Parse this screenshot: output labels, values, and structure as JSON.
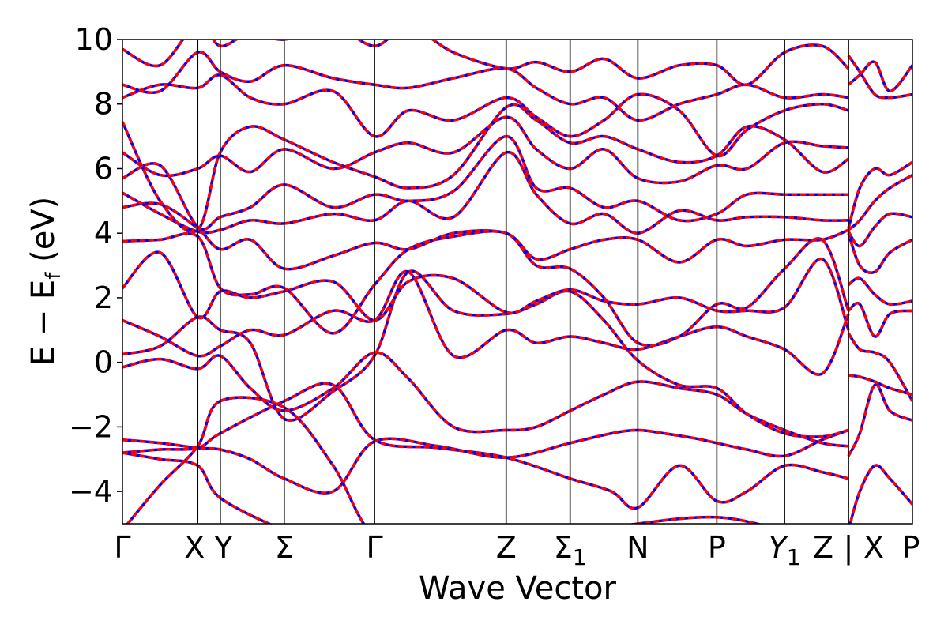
{
  "chart_data": {
    "type": "line",
    "title": "",
    "xlabel": "Wave Vector",
    "ylabel": "E − E",
    "ylabel_sub": "f",
    "ylabel_unit": "(eV)",
    "ylim": [
      -5,
      10
    ],
    "yticks": [
      "10",
      "8",
      "6",
      "4",
      "2",
      "0",
      "−2",
      "−4"
    ],
    "ytick_values": [
      10,
      8,
      6,
      4,
      2,
      0,
      -2,
      -4
    ],
    "xlim": [
      0,
      10.5
    ],
    "kpoints": [
      {
        "label": "Γ",
        "x": 0
      },
      {
        "label": "X",
        "x": 1.0
      },
      {
        "label": "Y",
        "x": 1.3
      },
      {
        "label": "Σ",
        "x": 2.15
      },
      {
        "label": "Γ",
        "x": 3.35
      },
      {
        "label": "Z",
        "x": 5.1
      },
      {
        "label": "Σ",
        "sub": "1",
        "x": 5.95
      },
      {
        "label": "N",
        "x": 6.85
      },
      {
        "label": "P",
        "x": 7.9
      },
      {
        "label": "Y",
        "sub": "1",
        "italic": true,
        "x": 8.8
      },
      {
        "label": "Z",
        "x": 9.65
      },
      {
        "label": "X",
        "x": 9.65,
        "break": true
      },
      {
        "label": "P",
        "x": 10.5
      }
    ],
    "series_colors": {
      "primary": "#ff0000",
      "secondary": "#0000ff"
    },
    "bands": [
      {
        "x": [
          0,
          0.5,
          1.0,
          1.3,
          2.15,
          2.8,
          3.35,
          4.2,
          5.1,
          5.95,
          6.85,
          7.9,
          8.8,
          9.65
        ],
        "y": [
          -5.2,
          -3.8,
          -2.6,
          -1.2,
          -1.4,
          -3.2,
          -5.4,
          -6,
          -6,
          -6,
          -6,
          -6,
          -6,
          -6
        ]
      },
      {
        "x": [
          0,
          0.5,
          1.0,
          1.3,
          2.15,
          2.8,
          3.35,
          4.2,
          5.1,
          5.95,
          6.85,
          7.9,
          8.8,
          9.65
        ],
        "y": [
          -2.8,
          -3.0,
          -3.2,
          -4.2,
          -5.2,
          -5.6,
          -5.8,
          -6,
          -6,
          -5.4,
          -5.0,
          -4.8,
          -5.2,
          -5.6
        ]
      },
      {
        "x": [
          0,
          0.5,
          1.0,
          1.3,
          1.7,
          2.15,
          2.8,
          3.35,
          4.2,
          5.1,
          5.95,
          6.5,
          6.85,
          7.2,
          7.6,
          7.9,
          8.3,
          8.8,
          9.3,
          9.65
        ],
        "y": [
          -2.4,
          -2.5,
          -2.65,
          -2.7,
          -3.0,
          -3.6,
          -4.0,
          -2.45,
          -2.6,
          -2.95,
          -2.5,
          -2.2,
          -2.1,
          -2.2,
          -2.35,
          -2.5,
          -2.7,
          -2.9,
          -2.4,
          -2.1
        ]
      },
      {
        "x": [
          0,
          0.5,
          1.0,
          1.3,
          2.15,
          2.8,
          3.35,
          4.2,
          5.1,
          5.95,
          6.5,
          6.85,
          7.4,
          7.9,
          8.3,
          8.8,
          9.3,
          9.65
        ],
        "y": [
          -2.8,
          -2.7,
          -2.65,
          -2.2,
          -1.2,
          -0.7,
          -2.4,
          -2.65,
          -2.95,
          -3.6,
          -4.0,
          -4.5,
          -3.2,
          -4.3,
          -4.0,
          -3.2,
          -3.4,
          -3.6
        ]
      },
      {
        "x": [
          0,
          0.5,
          1.0,
          1.3,
          1.7,
          2.15,
          2.8,
          3.35,
          3.8,
          4.4,
          5.1,
          5.5,
          5.95,
          6.4,
          6.85,
          7.4,
          7.9,
          8.3,
          8.8,
          9.3,
          9.65
        ],
        "y": [
          -0.15,
          0.1,
          -0.2,
          0.2,
          -0.8,
          -1.5,
          -0.8,
          0.3,
          -0.5,
          -2.0,
          -2.1,
          -2.0,
          -1.5,
          -1.0,
          -0.6,
          -0.8,
          -1.0,
          -1.6,
          -2.1,
          -2.5,
          -2.6
        ]
      },
      {
        "x": [
          0,
          0.5,
          1.0,
          1.3,
          1.7,
          2.15,
          2.8,
          3.35,
          3.8,
          4.4,
          5.1,
          5.5,
          5.95,
          6.4,
          6.85,
          7.4,
          7.9,
          8.3,
          8.8,
          9.3,
          9.65
        ],
        "y": [
          0.25,
          0.5,
          1.4,
          1.0,
          0.6,
          -1.75,
          -0.9,
          0.2,
          2.8,
          1.6,
          1.5,
          1.8,
          2.2,
          1.3,
          0.05,
          -0.7,
          -0.8,
          -1.6,
          -2.2,
          -2.3,
          -2.1
        ]
      },
      {
        "x": [
          0,
          0.5,
          1.0,
          1.3,
          1.7,
          2.15,
          2.8,
          3.35,
          3.8,
          4.4,
          5.1,
          5.5,
          5.95,
          6.4,
          6.85,
          7.4,
          7.9,
          8.3,
          8.8,
          9.3,
          9.65
        ],
        "y": [
          1.3,
          0.8,
          0.2,
          0.5,
          1.0,
          0.85,
          1.6,
          1.3,
          2.8,
          0.2,
          1.0,
          0.6,
          0.8,
          0.6,
          0.4,
          0.8,
          1.1,
          0.8,
          0.4,
          -0.35,
          1.5
        ]
      },
      {
        "x": [
          0,
          0.5,
          1.0,
          1.3,
          1.7,
          2.15,
          2.8,
          3.35,
          3.8,
          4.4,
          5.1,
          5.5,
          5.95,
          6.4,
          6.85,
          7.4,
          7.9,
          8.3,
          8.8,
          9.3,
          9.65
        ],
        "y": [
          2.3,
          3.4,
          1.4,
          2.2,
          2.0,
          2.2,
          2.5,
          1.3,
          2.5,
          2.6,
          1.55,
          1.9,
          2.25,
          1.9,
          1.8,
          2.0,
          1.6,
          1.6,
          1.7,
          3.2,
          1.0
        ]
      },
      {
        "x": [
          0,
          0.5,
          1.0,
          1.3,
          1.7,
          2.15,
          2.8,
          3.35,
          3.8,
          4.4,
          5.1,
          5.5,
          5.95,
          6.4,
          6.85,
          7.4,
          7.9,
          8.3,
          8.8,
          9.3,
          9.65
        ],
        "y": [
          3.75,
          3.8,
          3.9,
          2.3,
          2.1,
          2.3,
          0.9,
          2.4,
          3.5,
          3.9,
          4.0,
          3.0,
          2.9,
          2.0,
          0.6,
          0.8,
          1.8,
          1.7,
          2.9,
          3.8,
          1.6
        ]
      },
      {
        "x": [
          0,
          0.5,
          1.0,
          1.3,
          1.7,
          2.15,
          2.8,
          3.35,
          3.8,
          4.4,
          5.1,
          5.5,
          5.95,
          6.4,
          6.85,
          7.4,
          7.9,
          8.3,
          8.8,
          9.3,
          9.65
        ],
        "y": [
          4.8,
          4.9,
          4.15,
          3.5,
          3.8,
          2.9,
          3.3,
          3.7,
          3.5,
          4.0,
          4.0,
          3.2,
          3.5,
          3.8,
          3.8,
          3.1,
          3.8,
          3.6,
          3.8,
          3.8,
          4.1
        ]
      },
      {
        "x": [
          0,
          0.5,
          1.0,
          1.3,
          1.7,
          2.15,
          2.8,
          3.35,
          3.8,
          4.4,
          5.1,
          5.5,
          5.95,
          6.4,
          6.85,
          7.4,
          7.9,
          8.3,
          8.8,
          9.3,
          9.65
        ],
        "y": [
          5.25,
          4.6,
          4.05,
          4.1,
          4.4,
          4.3,
          4.6,
          4.4,
          5.0,
          4.5,
          6.5,
          5.2,
          4.3,
          4.6,
          4.0,
          4.7,
          4.4,
          4.5,
          4.5,
          4.4,
          4.4
        ]
      },
      {
        "x": [
          0,
          0.5,
          1.0,
          1.3,
          1.7,
          2.15,
          2.8,
          3.35,
          3.8,
          4.4,
          5.1,
          5.5,
          5.95,
          6.4,
          6.85,
          7.4,
          7.9,
          8.3,
          8.8,
          9.3,
          9.65
        ],
        "y": [
          5.7,
          6.1,
          4.2,
          4.5,
          4.8,
          5.5,
          4.8,
          5.2,
          5.0,
          5.3,
          7.0,
          5.4,
          5.4,
          4.8,
          5.0,
          4.4,
          4.6,
          5.2,
          5.2,
          5.2,
          5.2
        ]
      },
      {
        "x": [
          0,
          0.5,
          1.0,
          1.3,
          1.7,
          2.15,
          2.8,
          3.35,
          3.8,
          4.4,
          5.1,
          5.5,
          5.95,
          6.4,
          6.85,
          7.4,
          7.9,
          8.3,
          8.8,
          9.3,
          9.65
        ],
        "y": [
          6.5,
          5.8,
          6.0,
          6.4,
          5.9,
          6.6,
          6.0,
          6.5,
          6.8,
          6.5,
          7.6,
          6.6,
          6.0,
          6.6,
          5.7,
          5.6,
          6.1,
          6.0,
          6.8,
          6.7,
          6.65
        ]
      },
      {
        "x": [
          0,
          0.5,
          1.0,
          1.3,
          1.7,
          2.15,
          2.8,
          3.35,
          3.8,
          4.4,
          5.1,
          5.5,
          5.95,
          6.4,
          6.85,
          7.4,
          7.9,
          8.3,
          8.8,
          9.3,
          9.65
        ],
        "y": [
          7.45,
          5.0,
          4.1,
          6.5,
          7.3,
          6.9,
          6.2,
          5.75,
          5.4,
          5.8,
          7.9,
          7.5,
          6.8,
          7.0,
          6.6,
          6.2,
          6.4,
          7.3,
          6.9,
          5.9,
          6.3
        ]
      },
      {
        "x": [
          0,
          0.5,
          1.0,
          1.3,
          1.7,
          2.15,
          2.8,
          3.35,
          3.8,
          4.4,
          5.1,
          5.5,
          5.95,
          6.4,
          6.85,
          7.4,
          7.9,
          8.3,
          8.8,
          9.3,
          9.65
        ],
        "y": [
          8.2,
          8.6,
          8.5,
          8.9,
          8.2,
          8.0,
          8.4,
          7.0,
          7.8,
          7.5,
          8.2,
          7.6,
          7.0,
          7.5,
          8.3,
          7.8,
          6.4,
          7.2,
          7.8,
          8.0,
          7.8
        ]
      },
      {
        "x": [
          0,
          0.5,
          1.0,
          1.3,
          1.7,
          2.15,
          2.8,
          3.35,
          3.8,
          4.4,
          5.1,
          5.5,
          5.95,
          6.4,
          6.85,
          7.4,
          7.9,
          8.3,
          8.8,
          9.3,
          9.65
        ],
        "y": [
          8.6,
          8.4,
          9.6,
          9.0,
          8.7,
          9.2,
          8.8,
          8.6,
          8.5,
          8.8,
          9.1,
          8.5,
          8.0,
          8.2,
          7.5,
          8.0,
          8.3,
          8.6,
          8.2,
          8.3,
          8.2
        ]
      },
      {
        "x": [
          0,
          0.5,
          1.0,
          1.3,
          1.7,
          2.15,
          2.8,
          3.35,
          3.8,
          4.4,
          5.1,
          5.5,
          5.95,
          6.4,
          6.85,
          7.4,
          7.9,
          8.3,
          8.8,
          9.3,
          9.65
        ],
        "y": [
          9.7,
          9.2,
          10.5,
          9.8,
          10.2,
          10.0,
          10.4,
          9.8,
          10.4,
          9.6,
          9.1,
          9.3,
          9.0,
          9.4,
          8.8,
          9.2,
          9.2,
          8.6,
          9.6,
          9.8,
          9.1
        ]
      },
      {
        "x": [
          9.65,
          9.8,
          10.0,
          10.2,
          10.5
        ],
        "y": [
          -5.2,
          -4.0,
          -3.2,
          -3.6,
          -4.4
        ]
      },
      {
        "x": [
          9.65,
          9.8,
          10.0,
          10.2,
          10.5
        ],
        "y": [
          -2.9,
          -2.2,
          -0.7,
          -1.5,
          -1.8
        ]
      },
      {
        "x": [
          9.65,
          9.8,
          10.0,
          10.2,
          10.5
        ],
        "y": [
          -0.4,
          -0.45,
          -0.6,
          -0.8,
          -1.0
        ]
      },
      {
        "x": [
          9.65,
          9.8,
          10.0,
          10.2,
          10.5
        ],
        "y": [
          0.9,
          0.4,
          0.3,
          0.0,
          -1.2
        ]
      },
      {
        "x": [
          9.65,
          9.8,
          10.0,
          10.2,
          10.5
        ],
        "y": [
          1.6,
          1.8,
          0.8,
          1.5,
          1.6
        ]
      },
      {
        "x": [
          9.65,
          9.8,
          10.0,
          10.2,
          10.5
        ],
        "y": [
          2.4,
          2.6,
          2.1,
          1.8,
          1.9
        ]
      },
      {
        "x": [
          9.65,
          9.8,
          10.0,
          10.2,
          10.5
        ],
        "y": [
          4.0,
          3.0,
          2.8,
          3.4,
          3.8
        ]
      },
      {
        "x": [
          9.65,
          9.8,
          10.0,
          10.2,
          10.5
        ],
        "y": [
          4.05,
          3.6,
          4.2,
          4.6,
          4.5
        ]
      },
      {
        "x": [
          9.65,
          9.8,
          10.0,
          10.2,
          10.5
        ],
        "y": [
          4.1,
          4.4,
          5.0,
          5.4,
          5.8
        ]
      },
      {
        "x": [
          9.65,
          9.8,
          10.0,
          10.2,
          10.5
        ],
        "y": [
          4.15,
          5.4,
          6.0,
          5.8,
          6.2
        ]
      },
      {
        "x": [
          9.65,
          9.8,
          10.0,
          10.2,
          10.5
        ],
        "y": [
          8.6,
          8.9,
          9.3,
          8.4,
          9.2
        ]
      },
      {
        "x": [
          9.65,
          9.8,
          10.0,
          10.2,
          10.5
        ],
        "y": [
          9.5,
          9.0,
          8.3,
          8.2,
          8.3
        ]
      }
    ]
  }
}
